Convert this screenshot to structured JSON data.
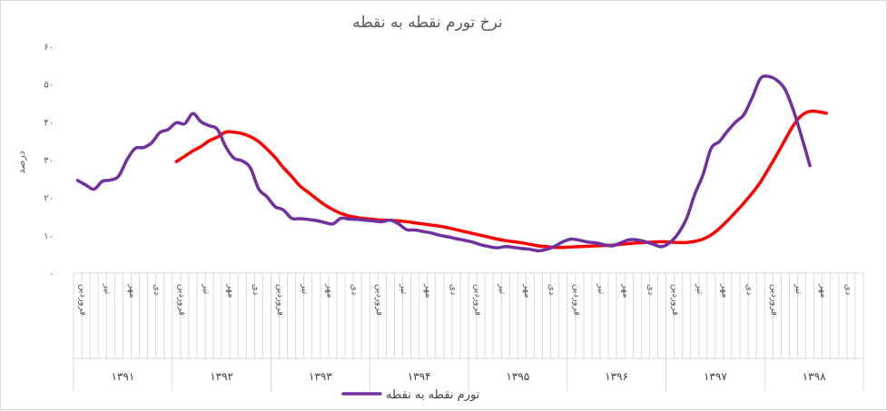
{
  "chart_data": {
    "type": "line",
    "title": "نرخ تورم نقطه به نقطه",
    "ylabel": "درصد",
    "ylim": [
      0,
      60
    ],
    "yticks": [
      "۰",
      "۱۰",
      "۲۰",
      "۳۰",
      "۴۰",
      "۵۰",
      "۶۰"
    ],
    "month_labels": [
      "فروردین",
      "تیر",
      "مهر",
      "دی"
    ],
    "years": [
      "۱۳۹۱",
      "۱۳۹۲",
      "۱۳۹۳",
      "۱۳۹۴",
      "۱۳۹۵",
      "۱۳۹۶",
      "۱۳۹۷",
      "۱۳۹۸"
    ],
    "grid": false,
    "legend_position": "bottom",
    "series": [
      {
        "name": "تورم نقطه به نقطه",
        "color": "#7030a0",
        "start_index": 0,
        "values": [
          24.5,
          23.3,
          22.2,
          24.3,
          24.6,
          25.7,
          30.0,
          33.0,
          33.2,
          34.5,
          37.2,
          38.0,
          39.8,
          39.5,
          42.2,
          40.0,
          39.0,
          38.0,
          33.4,
          30.4,
          29.7,
          27.8,
          22.3,
          20.2,
          17.6,
          16.7,
          14.5,
          14.4,
          14.2,
          13.9,
          13.4,
          13.0,
          14.5,
          14.3,
          14.2,
          14.0,
          13.8,
          13.6,
          14.0,
          13.0,
          11.5,
          11.4,
          11.0,
          10.6,
          10.0,
          9.6,
          9.1,
          8.7,
          8.2,
          7.5,
          7.0,
          6.7,
          7.0,
          6.8,
          6.5,
          6.3,
          5.9,
          6.3,
          7.1,
          8.3,
          9.0,
          8.7,
          8.2,
          8.0,
          7.5,
          7.2,
          8.0,
          8.8,
          8.8,
          8.3,
          7.6,
          7.0,
          8.1,
          10.5,
          14.4,
          20.8,
          26.0,
          33.0,
          34.8,
          37.6,
          40.0,
          42.0,
          46.5,
          51.5,
          52.0,
          51.0,
          48.5,
          43.0,
          36.0,
          28.4
        ]
      },
      {
        "name": "",
        "color": "#ff0000",
        "start_index": 12,
        "values": [
          29.5,
          30.9,
          32.3,
          33.5,
          35.0,
          36.0,
          37.3,
          37.3,
          36.9,
          36.1,
          34.8,
          32.8,
          30.6,
          27.9,
          25.6,
          23.1,
          21.4,
          19.7,
          18.1,
          16.8,
          15.8,
          15.1,
          14.7,
          14.4,
          14.2,
          14.0,
          14.0,
          13.8,
          13.6,
          13.3,
          13.0,
          12.7,
          12.4,
          12.0,
          11.5,
          11.0,
          10.5,
          10.0,
          9.5,
          9.0,
          8.6,
          8.3,
          8.0,
          7.6,
          7.2,
          7.0,
          6.8,
          6.8,
          6.9,
          7.0,
          7.1,
          7.2,
          7.3,
          7.4,
          7.6,
          7.8,
          8.0,
          8.1,
          8.2,
          8.3,
          8.2,
          8.1,
          8.1,
          8.4,
          9.0,
          10.1,
          11.8,
          13.9,
          16.2,
          18.6,
          21.2,
          24.1,
          27.7,
          31.4,
          35.3,
          39.1,
          41.7,
          42.8,
          42.7,
          42.3
        ]
      }
    ]
  }
}
